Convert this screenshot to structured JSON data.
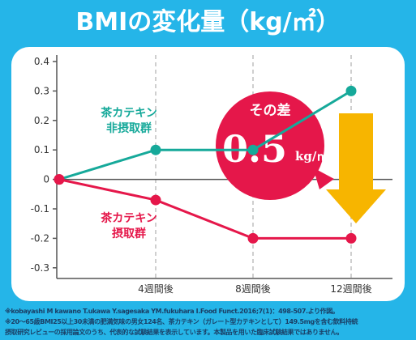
{
  "title": "BMIの変化量（kg/㎡）",
  "chart_data": {
    "type": "line",
    "categories": [
      "0",
      "4週間後",
      "8週間後",
      "12週間後"
    ],
    "x_tick_labels": [
      "",
      "4週間後",
      "8週間後",
      "12週間後"
    ],
    "y_ticks": [
      "0.4",
      "0.3",
      "0.2",
      "0.1",
      "0",
      "-0.1",
      "-0.2",
      "-0.3"
    ],
    "ylim": [
      -0.35,
      0.42
    ],
    "grid": "vertical-dashed",
    "series": [
      {
        "name": "茶カテキン非摂取群",
        "name_lines": [
          "茶カテキン",
          "非摂取群"
        ],
        "color": "#16a99a",
        "values": [
          0,
          0.1,
          0.1,
          0.3
        ]
      },
      {
        "name": "茶カテキン摂取群",
        "name_lines": [
          "茶カテキン",
          "摂取群"
        ],
        "color": "#e5174a",
        "values": [
          0,
          -0.07,
          -0.2,
          -0.2
        ]
      }
    ],
    "annotation": {
      "label": "その差",
      "value": "0.5",
      "unit": "kg/㎡",
      "circle_color": "#e5174a",
      "arrow_color": "#f7b500"
    }
  },
  "footnote": {
    "line1": "※kobayashi M kawano T.ukawa Y.sagesaka YM.fukuhara I.Food Funct.2016;7(1)：498-507.より作図。",
    "line2": "※20～65歳BMI25以上30未満の肥満気味の男女124名、茶カテキン（ガレート型カテキンとして）149.5mgを含む飲料持続",
    "line3": "摂取研究レビューの採用論文のうち、代表的な試験結果を表示しています。本製品を用いた臨床試験結果ではありません。"
  }
}
